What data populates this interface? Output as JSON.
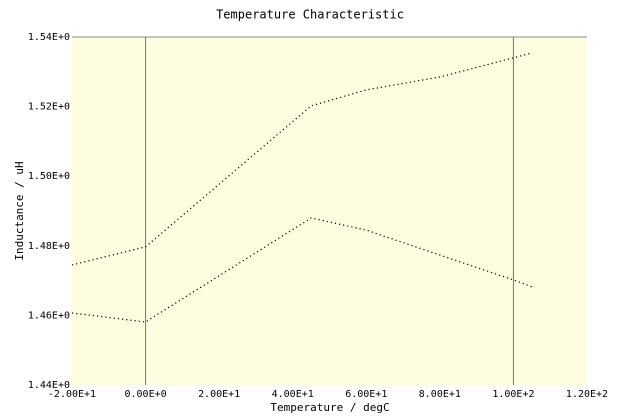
{
  "chart_data": {
    "type": "line",
    "title": "Temperature Characteristic",
    "x_label": "Temperature / degC",
    "y_label": "Inductance / uH",
    "xlim": [
      -20,
      120
    ],
    "xticks": [
      {
        "value": -20,
        "label": "-2.00E+1"
      },
      {
        "value": 0,
        "label": "0.00E+0"
      },
      {
        "value": 20,
        "label": "2.00E+1"
      },
      {
        "value": 40,
        "label": "4.00E+1"
      },
      {
        "value": 60,
        "label": "6.00E+1"
      },
      {
        "value": 80,
        "label": "8.00E+1"
      },
      {
        "value": 100,
        "label": "1.00E+2"
      },
      {
        "value": 120,
        "label": "1.20E+2"
      }
    ],
    "ylim": [
      1.44,
      1.54
    ],
    "yticks": [
      {
        "value": 1.44,
        "label": "1.44E+0"
      },
      {
        "value": 1.46,
        "label": "1.46E+0"
      },
      {
        "value": 1.48,
        "label": "1.48E+0"
      },
      {
        "value": 1.5,
        "label": "1.50E+0"
      },
      {
        "value": 1.52,
        "label": "1.52E+0"
      },
      {
        "value": 1.54,
        "label": "1.54E+0"
      }
    ],
    "markers": [
      0,
      100
    ],
    "background": "#fffde0",
    "series": [
      {
        "color": "#000000",
        "x": [
          -20,
          0,
          45,
          60,
          80,
          105
        ],
        "values": [
          1.4745,
          1.4797,
          1.5202,
          1.5248,
          1.5285,
          1.5354
        ]
      },
      {
        "color": "#000000",
        "x": [
          -20,
          0,
          45,
          60,
          100,
          105
        ],
        "values": [
          1.4607,
          1.4581,
          1.488,
          1.4845,
          1.4702,
          1.4682
        ]
      }
    ]
  }
}
